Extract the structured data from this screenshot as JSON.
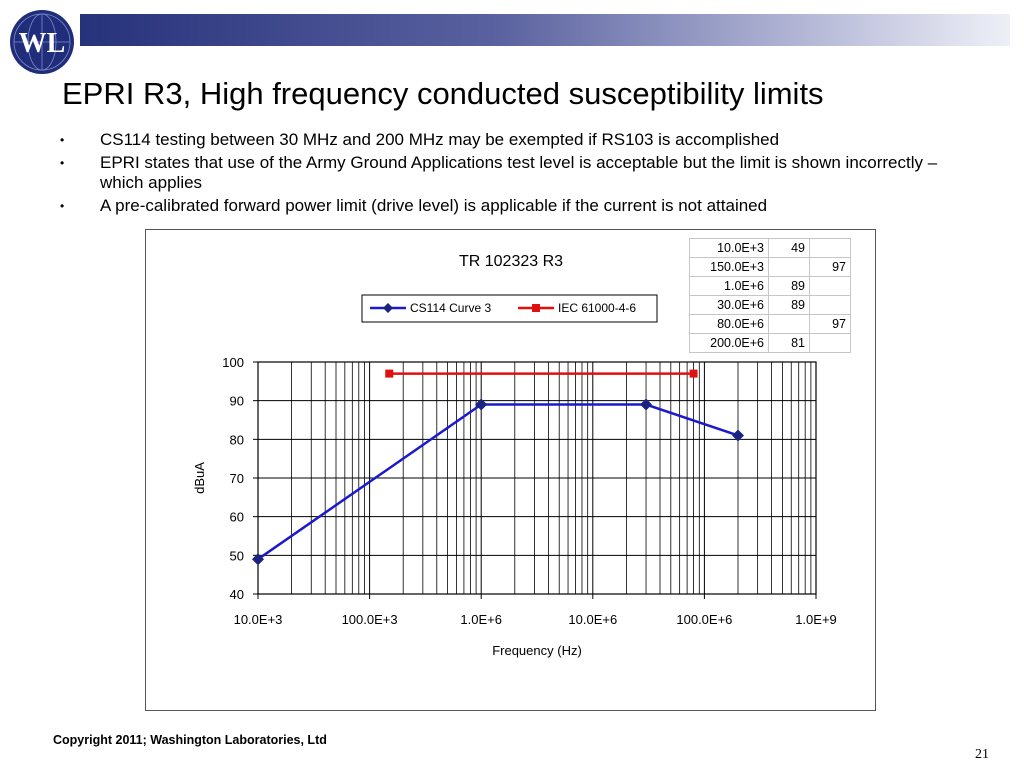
{
  "logo": {
    "text": "WL"
  },
  "slide": {
    "title": "EPRI R3, High frequency conducted susceptibility limits",
    "bullets": [
      "CS114 testing between 30 MHz and 200 MHz may be exempted if RS103 is accomplished",
      "EPRI states that use of the Army Ground Applications test level is acceptable but the limit is shown incorrectly – which applies",
      "A pre-calibrated forward power limit (drive level) is applicable if the current is not attained"
    ],
    "bullet_glyph": "•"
  },
  "table": {
    "rows": [
      [
        "10.0E+3",
        "49",
        ""
      ],
      [
        "150.0E+3",
        "",
        "97"
      ],
      [
        "1.0E+6",
        "89",
        ""
      ],
      [
        "30.0E+6",
        "89",
        ""
      ],
      [
        "80.0E+6",
        "",
        "97"
      ],
      [
        "200.0E+6",
        "81",
        ""
      ]
    ]
  },
  "chart_data": {
    "type": "line",
    "title": "TR 102323 R3",
    "xlabel": "Frequency (Hz)",
    "ylabel": "dBuA",
    "x_scale": "log",
    "xlim": [
      10000,
      1000000000
    ],
    "ylim": [
      40,
      100
    ],
    "x_tick_labels": [
      "10.0E+3",
      "100.0E+3",
      "1.0E+6",
      "10.0E+6",
      "100.0E+6",
      "1.0E+9"
    ],
    "y_ticks": [
      40,
      50,
      60,
      70,
      80,
      90,
      100
    ],
    "grid": true,
    "legend_position": "top",
    "series": [
      {
        "name": "CS114 Curve 3",
        "color": "#1a1acc",
        "marker": "diamond",
        "x": [
          10000,
          1000000,
          30000000,
          200000000
        ],
        "y": [
          49,
          89,
          89,
          81
        ]
      },
      {
        "name": "IEC 61000-4-6",
        "color": "#e01010",
        "marker": "square",
        "x": [
          150000,
          80000000
        ],
        "y": [
          97,
          97
        ]
      }
    ]
  },
  "footer": {
    "copyright": "Copyright 2011; Washington Laboratories, Ltd",
    "page_number": "21"
  }
}
